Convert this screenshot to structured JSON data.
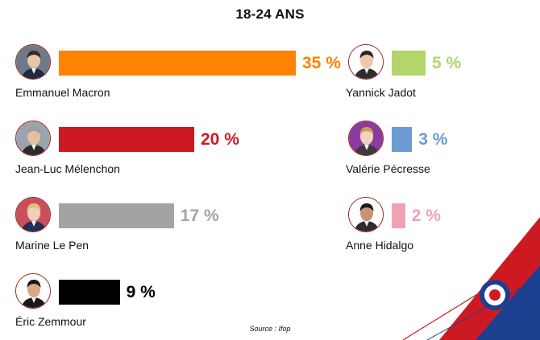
{
  "chart_data": {
    "type": "bar",
    "title": "18-24 ANS",
    "unit": "%",
    "source": "Source :  Ifop",
    "max_value": 35,
    "candidates": [
      {
        "name": "Emmanuel Macron",
        "value": 35,
        "label": "35 %",
        "color": "#ff8200"
      },
      {
        "name": "Jean-Luc Mélenchon",
        "value": 20,
        "label": "20 %",
        "color": "#cd1a22"
      },
      {
        "name": "Marine Le Pen",
        "value": 17,
        "label": "17 %",
        "color": "#a3a3a3"
      },
      {
        "name": "Éric Zemmour",
        "value": 9,
        "label": "9 %",
        "color": "#000000"
      },
      {
        "name": "Yannick Jadot",
        "value": 5,
        "label": "5 %",
        "color": "#b2d56c"
      },
      {
        "name": "Valérie Pécresse",
        "value": 3,
        "label": "3 %",
        "color": "#6b9bd1"
      },
      {
        "name": "Anne Hidalgo",
        "value": 2,
        "label": "2 %",
        "color": "#f0a2b4"
      }
    ]
  }
}
